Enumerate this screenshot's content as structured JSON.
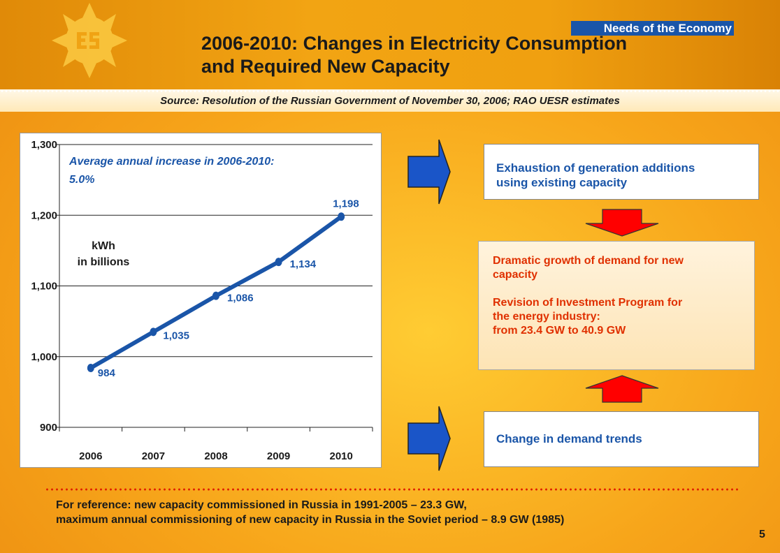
{
  "header": {
    "tag": "Needs of the Economy",
    "title_line1": "2006-2010: Changes in Electricity Consumption",
    "title_line2": "and Required New Capacity",
    "source": "Source:  Resolution of the Russian Government  of November 30, 2006; RAO UESR estimates"
  },
  "chart_data": {
    "type": "line",
    "categories": [
      "2006",
      "2007",
      "2008",
      "2009",
      "2010"
    ],
    "values": [
      984,
      1035,
      1086,
      1134,
      1198
    ],
    "data_labels": [
      "984",
      "1,035",
      "1,086",
      "1,134",
      "1,198"
    ],
    "ylim": [
      900,
      1300
    ],
    "yticks": [
      900,
      1000,
      1100,
      1200,
      1300
    ],
    "ytick_labels": [
      "900",
      "1,000",
      "1,100",
      "1,200",
      "1,300"
    ],
    "ylabel_line1": "kWh",
    "ylabel_line2": "in billions",
    "annotation_line1": "Average annual increase in 2006-2010:",
    "annotation_line2": "5.0%",
    "grid": true,
    "line_color": "#1a55a8"
  },
  "boxes": {
    "top": {
      "line1": "Exhaustion of generation additions",
      "line2": "using existing capacity"
    },
    "middle": {
      "para1_line1": "Dramatic growth of demand for new",
      "para1_line2": "capacity",
      "para2_line1": "Revision of Investment Program for",
      "para2_line2": "the energy industry:",
      "para2_line3": "from 23.4 GW to 40.9 GW"
    },
    "bottom": {
      "text": "Change in demand trends"
    }
  },
  "reference": {
    "line1": "For reference: new capacity commissioned in Russia in 1991-2005 – 23.3 GW,",
    "line2": "maximum annual commissioning of new capacity in Russia in the Soviet period – 8.9 GW (1985)"
  },
  "page_number": "5",
  "colors": {
    "accent_blue": "#1a55a8",
    "accent_red": "#e03000",
    "arrow_red": "#ff0000",
    "background_orange": "#f7a51a"
  }
}
